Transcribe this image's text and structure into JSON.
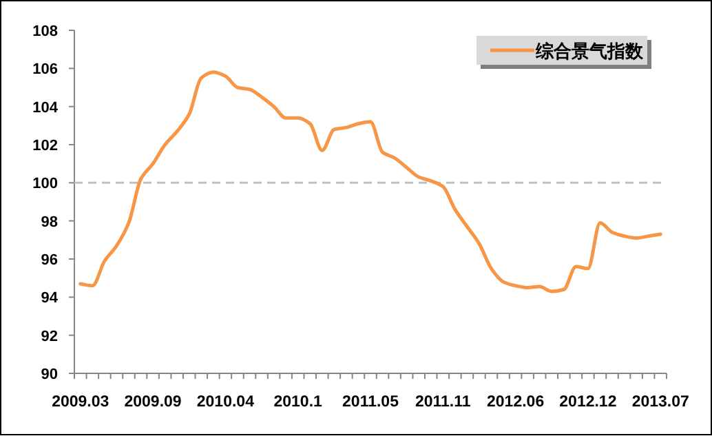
{
  "chart_data": {
    "type": "line",
    "categories": [
      "2009.03",
      null,
      null,
      null,
      null,
      null,
      "2009.09",
      null,
      null,
      null,
      null,
      null,
      "2010.04",
      null,
      null,
      null,
      null,
      null,
      "2010.1",
      null,
      null,
      null,
      null,
      null,
      "2011.05",
      null,
      null,
      null,
      null,
      null,
      "2011.11",
      null,
      null,
      null,
      null,
      null,
      "2012.06",
      null,
      null,
      null,
      null,
      null,
      "2012.12",
      null,
      null,
      null,
      null,
      null,
      "2013.07"
    ],
    "series": [
      {
        "name": "综合景气指数",
        "color": "#f79646",
        "values": [
          94.7,
          94.6,
          95.9,
          96.7,
          97.9,
          100.2,
          101.0,
          102.0,
          102.7,
          103.6,
          105.5,
          105.8,
          105.6,
          105.0,
          104.9,
          104.5,
          104.0,
          103.4,
          103.4,
          103.1,
          101.7,
          102.8,
          102.9,
          103.1,
          103.2,
          101.6,
          101.3,
          100.8,
          100.3,
          100.1,
          99.8,
          98.6,
          97.7,
          96.8,
          95.5,
          94.8,
          94.6,
          94.5,
          94.55,
          94.3,
          94.4,
          95.6,
          95.5,
          97.9,
          97.4,
          97.2,
          97.1,
          97.2,
          97.3
        ]
      }
    ],
    "ylim": [
      90,
      108
    ],
    "yticks": [
      90,
      92,
      94,
      96,
      98,
      100,
      102,
      104,
      106,
      108
    ],
    "ref_lines": [
      {
        "axis": "y",
        "value": 100,
        "color": "#c0c0c0",
        "line_style": "dashed"
      }
    ],
    "grid": false,
    "legend": "top right",
    "marker": "none",
    "line_style": "solid"
  }
}
